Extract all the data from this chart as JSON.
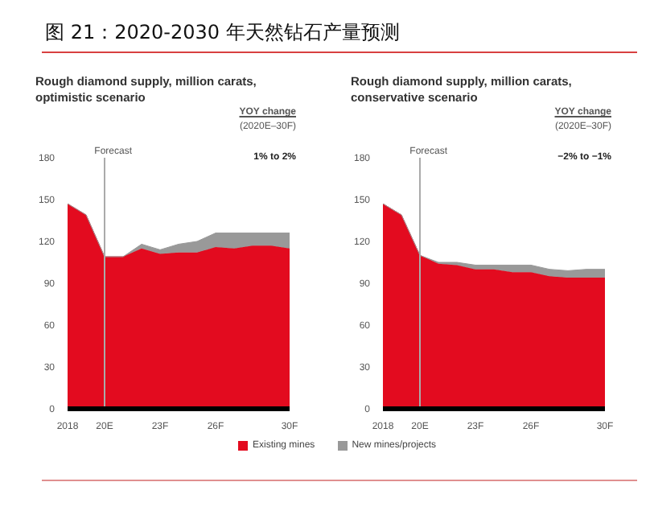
{
  "chart_data": [
    {
      "type": "area",
      "annotations": [
        "图 21：2020-2030 年天然钻石产量预测",
        "YOY change",
        "(2020E–30F)",
        "1% to 2%"
      ],
      "title": "Rough diamond supply, million carats, optimistic scenario",
      "stacked": true,
      "categories": [
        "2018",
        null,
        "20E",
        null,
        null,
        "23F",
        null,
        null,
        "26F",
        null,
        null,
        null,
        "30F"
      ],
      "series": [
        {
          "name": "Existing mines",
          "color": "#e30b1f",
          "values": [
            147,
            139,
            109,
            109,
            115,
            111,
            112,
            112,
            116,
            115,
            117,
            117,
            115
          ]
        },
        {
          "name": "New mines/projects",
          "color": "#999999",
          "values": [
            0,
            0,
            0,
            0,
            3,
            3,
            6,
            8,
            10,
            11,
            9,
            9,
            11
          ]
        }
      ],
      "ylim": [
        0,
        180
      ],
      "yticks": [
        0,
        30,
        60,
        90,
        120,
        150,
        180
      ],
      "grid": false,
      "legend": "bottom",
      "ref_lines": [
        {
          "axis": "x",
          "value": "20E",
          "label": "Forecast",
          "color": "#aaaaaa"
        }
      ]
    },
    {
      "type": "area",
      "annotations": [
        "YOY change",
        "(2020E–30F)",
        "−2% to −1%"
      ],
      "title": "Rough diamond supply, million carats, conservative scenario",
      "stacked": true,
      "categories": [
        "2018",
        null,
        "20E",
        null,
        null,
        "23F",
        null,
        null,
        "26F",
        null,
        null,
        null,
        "30F"
      ],
      "series": [
        {
          "color": "#e30b1f",
          "values": [
            147,
            139,
            110,
            104,
            103,
            100,
            100,
            98,
            98,
            95,
            94,
            94,
            94
          ]
        },
        {
          "color": "#999999",
          "values": [
            0,
            0,
            0,
            1,
            2,
            3,
            3,
            5,
            5,
            5,
            5,
            6,
            6
          ]
        }
      ],
      "ylim": [
        0,
        180
      ],
      "yticks": [
        0,
        30,
        60,
        90,
        120,
        150,
        180
      ],
      "grid": false,
      "ref_lines": [
        {
          "axis": "x",
          "value": "20E",
          "label": "Forecast",
          "color": "#aaaaaa"
        }
      ]
    }
  ]
}
